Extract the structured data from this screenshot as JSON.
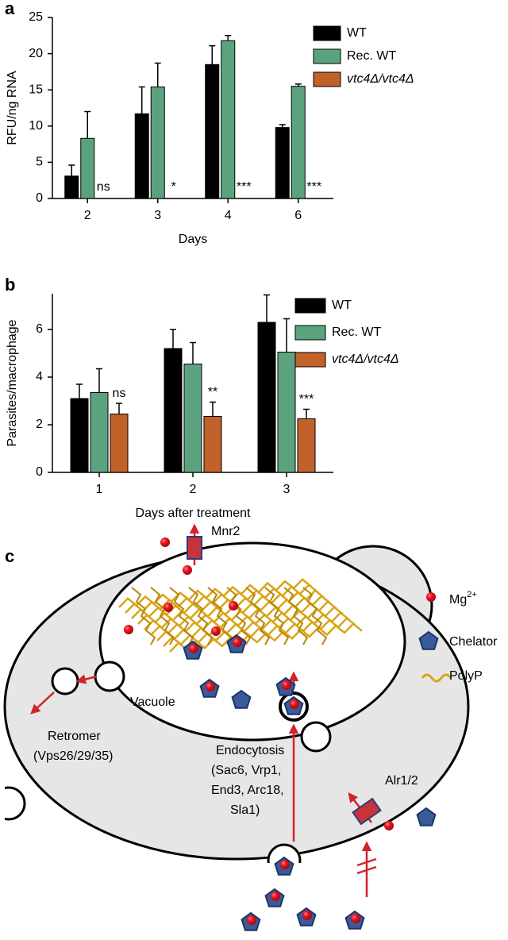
{
  "chart_data": [
    {
      "type": "bar",
      "panel_label": "a",
      "ylabel": "RFU/ng RNA",
      "xlabel": "Days",
      "categories": [
        "2",
        "3",
        "4",
        "6"
      ],
      "series": [
        {
          "name": "WT",
          "color": "#000000",
          "values": [
            3.1,
            11.7,
            18.5,
            9.8
          ],
          "errors": [
            1.5,
            3.7,
            2.6,
            0.4
          ]
        },
        {
          "name": "Rec. WT",
          "color": "#5ba37e",
          "values": [
            8.3,
            15.4,
            21.8,
            15.5
          ],
          "errors": [
            3.7,
            3.3,
            0.7,
            0.3
          ]
        },
        {
          "name": "vtc4Δ/vtc4Δ",
          "color": "#c0622a",
          "values": [
            0,
            0,
            0,
            0
          ]
        }
      ],
      "annotations": [
        "ns",
        "*",
        "***",
        "***"
      ],
      "ylim": [
        0,
        25
      ],
      "yticks": [
        0,
        5,
        10,
        15,
        20,
        25
      ]
    },
    {
      "type": "bar",
      "panel_label": "b",
      "ylabel": "Parasites/macrophage",
      "xlabel": "Days after treatment",
      "categories": [
        "1",
        "2",
        "3"
      ],
      "series": [
        {
          "name": "WT",
          "color": "#000000",
          "values": [
            3.1,
            5.2,
            6.3
          ],
          "errors": [
            0.6,
            0.8,
            1.15
          ]
        },
        {
          "name": "Rec. WT",
          "color": "#5ba37e",
          "values": [
            3.35,
            4.55,
            5.05
          ],
          "errors": [
            1.0,
            0.9,
            1.4
          ]
        },
        {
          "name": "vtc4Δ/vtc4Δ",
          "color": "#c0622a",
          "values": [
            2.45,
            2.35,
            2.25
          ],
          "errors": [
            0.45,
            0.6,
            0.4
          ]
        }
      ],
      "annotations": [
        "ns",
        "**",
        "***"
      ],
      "ylim": [
        0,
        7.5
      ],
      "yticks": [
        0,
        2,
        4,
        6
      ]
    }
  ],
  "diagram": {
    "panel_label": "c",
    "mnr2": "Mnr2",
    "alr": "Alr1/2",
    "vacuole": "Vacuole",
    "retromer": [
      "Retromer",
      "(Vps26/29/35)"
    ],
    "endocytosis": [
      "Endocytosis",
      "(Sac6, Vrp1,",
      "End3, Arc18,",
      "Sla1)"
    ],
    "legend": [
      {
        "label": "Mg",
        "superscript": "2+"
      },
      {
        "label": "Chelator"
      },
      {
        "label": "PolyP"
      }
    ]
  }
}
